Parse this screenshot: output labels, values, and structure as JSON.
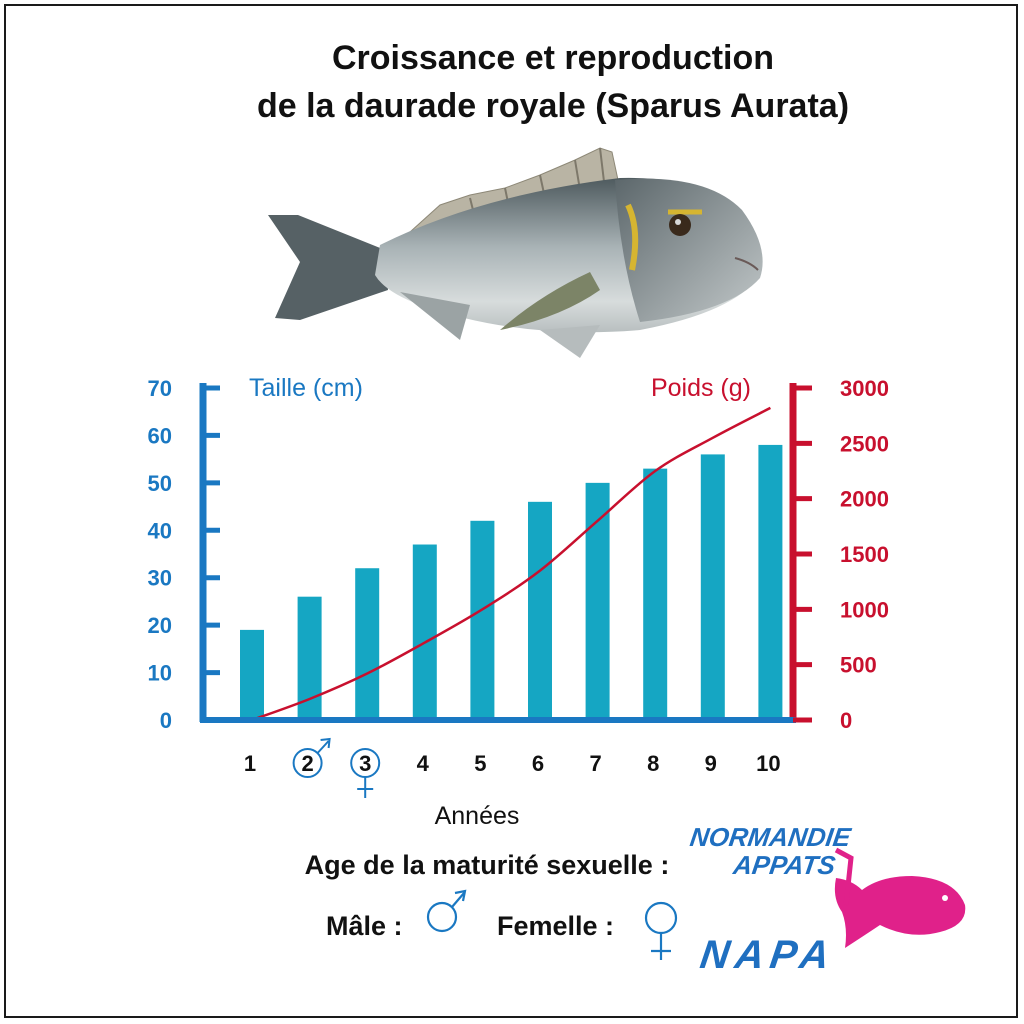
{
  "title_line1": "Croissance et reproduction",
  "title_line2": "de la daurade royale (Sparus Aurata)",
  "chart_data": {
    "type": "bar",
    "categories": [
      "1",
      "2",
      "3",
      "4",
      "5",
      "6",
      "7",
      "8",
      "9",
      "10"
    ],
    "xlabel": "Années",
    "y_left": {
      "label": "Taille (cm)",
      "ticks": [
        "70",
        "60",
        "50",
        "40",
        "30",
        "20",
        "10",
        "0"
      ],
      "ylim": [
        0,
        70
      ],
      "color": "#1a78c2"
    },
    "y_right": {
      "label": "Poids (g)",
      "ticks": [
        "3000",
        "2500",
        "2000",
        "1500",
        "1000",
        "500",
        "0"
      ],
      "ylim": [
        0,
        3000
      ],
      "color": "#c8102e"
    },
    "series": [
      {
        "axis": "left",
        "type": "bar",
        "color": "#15a6c3",
        "values": [
          19,
          26,
          32,
          37,
          42,
          46,
          50,
          53,
          56,
          58
        ]
      },
      {
        "axis": "right",
        "type": "line",
        "color": "#c8102e",
        "values": [
          0,
          190,
          420,
          700,
          1000,
          1350,
          1800,
          2250,
          2550,
          2820
        ]
      }
    ],
    "markers": [
      {
        "category": "2",
        "symbol": "male",
        "circled": true
      },
      {
        "category": "3",
        "symbol": "female",
        "circled": true
      }
    ]
  },
  "maturity": {
    "title": "Age de la maturité sexuelle :",
    "male_label": "Mâle :",
    "female_label": "Femelle :",
    "symbol_color": "#1a78c2"
  },
  "logo": {
    "line1": "NORMANDIE",
    "line2": "APPATS",
    "line3": "NAPA",
    "text_color": "#1f6fc0",
    "fish_color": "#e0218a"
  },
  "photo": {
    "subject": "gilthead-seabream-fish"
  }
}
